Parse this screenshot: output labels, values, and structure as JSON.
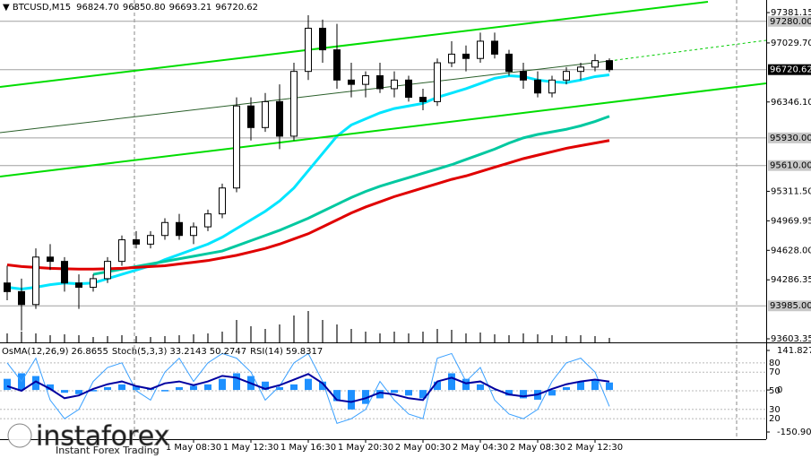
{
  "chart_data": [
    {
      "type": "candlestick",
      "title": "BTCUSD,M15",
      "last_bar_labels": [
        "96824.70",
        "96850.80",
        "96693.21",
        "96720.62"
      ],
      "categories": [
        null,
        null,
        null,
        null,
        null,
        null,
        null,
        null,
        null,
        null,
        null,
        null,
        null,
        "1 May 08:30",
        null,
        null,
        null,
        "1 May 12:30",
        null,
        null,
        null,
        "1 May 16:30",
        null,
        null,
        null,
        "1 May 20:30",
        null,
        null,
        null,
        "2 May 00:30",
        null,
        null,
        null,
        "2 May 04:30",
        null,
        null,
        null,
        "2 May 08:30",
        null,
        null,
        null,
        "2 May 12:30",
        null
      ],
      "candles": [
        [
          94250,
          94450,
          94050,
          94150
        ],
        [
          94150,
          94300,
          93700,
          94000
        ],
        [
          94000,
          94650,
          93950,
          94550
        ],
        [
          94550,
          94700,
          94400,
          94500
        ],
        [
          94500,
          94550,
          94150,
          94250
        ],
        [
          94250,
          94350,
          93950,
          94200
        ],
        [
          94200,
          94350,
          94150,
          94300
        ],
        [
          94300,
          94550,
          94250,
          94500
        ],
        [
          94500,
          94800,
          94450,
          94750
        ],
        [
          94750,
          94850,
          94650,
          94700
        ],
        [
          94700,
          94850,
          94650,
          94800
        ],
        [
          94800,
          95000,
          94750,
          94950
        ],
        [
          94950,
          95050,
          94750,
          94800
        ],
        [
          94800,
          94950,
          94700,
          94900
        ],
        [
          94900,
          95100,
          94850,
          95050
        ],
        [
          95050,
          95400,
          95000,
          95350
        ],
        [
          95350,
          96400,
          95300,
          96300
        ],
        [
          96300,
          96400,
          95900,
          96050
        ],
        [
          96050,
          96450,
          96000,
          96350
        ],
        [
          96350,
          96550,
          95800,
          95950
        ],
        [
          95950,
          96800,
          95900,
          96700
        ],
        [
          96700,
          97350,
          96600,
          97200
        ],
        [
          97200,
          97300,
          96800,
          96950
        ],
        [
          96950,
          97250,
          96500,
          96600
        ],
        [
          96600,
          96800,
          96400,
          96550
        ],
        [
          96550,
          96700,
          96400,
          96650
        ],
        [
          96650,
          96800,
          96450,
          96500
        ],
        [
          96500,
          96700,
          96400,
          96600
        ],
        [
          96600,
          96650,
          96350,
          96400
        ],
        [
          96400,
          96500,
          96250,
          96350
        ],
        [
          96350,
          96850,
          96300,
          96800
        ],
        [
          96800,
          97050,
          96750,
          96900
        ],
        [
          96900,
          97000,
          96700,
          96850
        ],
        [
          96850,
          97150,
          96800,
          97050
        ],
        [
          97050,
          97150,
          96850,
          96900
        ],
        [
          96900,
          96950,
          96650,
          96700
        ],
        [
          96700,
          96800,
          96500,
          96600
        ],
        [
          96600,
          96700,
          96400,
          96450
        ],
        [
          96450,
          96650,
          96400,
          96600
        ],
        [
          96600,
          96750,
          96550,
          96700
        ],
        [
          96700,
          96800,
          96600,
          96750
        ],
        [
          96750,
          96900,
          96700,
          96824.7
        ],
        [
          96824.7,
          96850.8,
          96693.21,
          96720.62
        ]
      ],
      "moving_averages": [
        {
          "color": "#00e5ff",
          "values": [
            94200,
            94180,
            94200,
            94230,
            94250,
            94240,
            94250,
            94300,
            94350,
            94400,
            94450,
            94520,
            94580,
            94640,
            94700,
            94780,
            94880,
            94980,
            95080,
            95200,
            95350,
            95550,
            95750,
            95950,
            96080,
            96150,
            96220,
            96270,
            96300,
            96330,
            96400,
            96450,
            96500,
            96560,
            96620,
            96650,
            96640,
            96600,
            96580,
            96570,
            96600,
            96640,
            96660
          ]
        },
        {
          "color": "#00c8a0",
          "values": [
            null,
            null,
            null,
            null,
            null,
            null,
            94350,
            94380,
            94410,
            94440,
            94470,
            94500,
            94530,
            94560,
            94590,
            94620,
            94680,
            94740,
            94800,
            94860,
            94930,
            95000,
            95080,
            95160,
            95240,
            95310,
            95370,
            95420,
            95470,
            95520,
            95570,
            95620,
            95680,
            95740,
            95800,
            95870,
            95930,
            95970,
            96000,
            96030,
            96070,
            96120,
            96180
          ]
        },
        {
          "color": "#e00000",
          "values": [
            94460,
            94440,
            94430,
            94420,
            94415,
            94410,
            94410,
            94415,
            94420,
            94430,
            94440,
            94450,
            94470,
            94490,
            94510,
            94540,
            94570,
            94610,
            94650,
            94700,
            94760,
            94820,
            94900,
            94980,
            95060,
            95130,
            95190,
            95250,
            95300,
            95350,
            95400,
            95450,
            95490,
            95540,
            95590,
            95640,
            95690,
            95730,
            95770,
            95810,
            95840,
            95870,
            95900
          ]
        }
      ],
      "volumes": {
        "color": "#707070",
        "values": [
          10,
          12,
          10,
          8,
          9,
          8,
          6,
          7,
          8,
          7,
          6,
          7,
          8,
          9,
          10,
          12,
          25,
          18,
          15,
          20,
          30,
          35,
          25,
          20,
          15,
          12,
          10,
          12,
          10,
          12,
          15,
          14,
          10,
          11,
          9,
          8,
          10,
          9,
          8,
          7,
          8,
          7,
          5
        ]
      },
      "ylim": [
        93562,
        97527
      ],
      "yticks": [
        {
          "value": 97381.15,
          "label": "97381.15"
        },
        {
          "value": 97029.7,
          "label": "97029.70"
        },
        {
          "value": 96346.1,
          "label": "96346.10"
        },
        {
          "value": 95311.5,
          "label": "95311.50"
        },
        {
          "value": 94969.95,
          "label": "94969.95"
        },
        {
          "value": 94628,
          "label": "94628.00"
        },
        {
          "value": 94286.35,
          "label": "94286.35"
        },
        {
          "value": 93603.35,
          "label": "93603.35"
        }
      ],
      "levels": [
        {
          "value": 97280,
          "label": "97280.00"
        },
        {
          "value": 95930,
          "label": "95930.00"
        },
        {
          "value": 95610,
          "label": "95610.00"
        },
        {
          "value": 93985,
          "label": "93985.00"
        }
      ]
    },
    {
      "type": "oscillator",
      "indicators": [
        {
          "name": "OsMA(12,26,9)",
          "type": "bar",
          "axis": "y2",
          "color": "#1e90ff",
          "values": [
            40,
            60,
            50,
            20,
            -10,
            -15,
            -5,
            10,
            20,
            15,
            5,
            -5,
            10,
            15,
            20,
            40,
            60,
            50,
            30,
            10,
            20,
            40,
            30,
            -40,
            -70,
            -50,
            -30,
            -10,
            -20,
            -30,
            30,
            60,
            40,
            20,
            0,
            -20,
            -30,
            -35,
            -20,
            10,
            30,
            35,
            26.8655
          ]
        },
        {
          "name": "Stoch(5,3,3)",
          "type": "line",
          "color": "#3aa0ff",
          "signal": 50.2747,
          "values": [
            80,
            60,
            85,
            40,
            20,
            30,
            60,
            75,
            80,
            50,
            40,
            70,
            85,
            60,
            80,
            90,
            85,
            70,
            40,
            55,
            80,
            90,
            60,
            15,
            20,
            30,
            60,
            40,
            25,
            20,
            85,
            90,
            60,
            75,
            40,
            25,
            20,
            30,
            60,
            80,
            85,
            70,
            33.2143
          ]
        },
        {
          "name": "RSI(14)",
          "type": "line",
          "color": "#0000a0",
          "values": [
            55,
            50,
            60,
            52,
            42,
            45,
            52,
            57,
            60,
            55,
            52,
            58,
            60,
            56,
            60,
            66,
            64,
            58,
            52,
            56,
            62,
            68,
            58,
            40,
            38,
            42,
            48,
            46,
            42,
            40,
            60,
            64,
            58,
            60,
            52,
            46,
            44,
            46,
            52,
            57,
            60,
            62,
            59.8317
          ]
        }
      ],
      "ylim": [
        -2,
        101
      ],
      "yticks": [
        80,
        70,
        50,
        30,
        20
      ],
      "y2lim": [
        -176.6,
        167.6
      ],
      "y2ticks": [
        141.8271,
        0,
        -150.9027
      ]
    }
  ],
  "watermark": {
    "brand": "instaforex",
    "tagline": "Instant Forex Trading"
  }
}
